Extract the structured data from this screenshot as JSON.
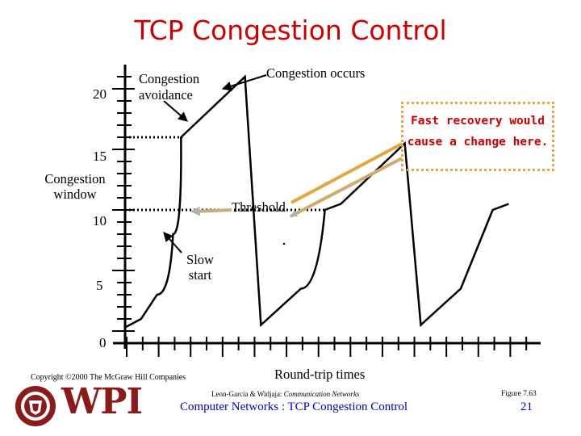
{
  "slide": {
    "title": "TCP Congestion Control",
    "copyright": "Copyright ©2000 The McGraw Hill Companies",
    "citation": "Leon-Garcia & Widjaja:",
    "citation_book": "Communication Networks",
    "figure": "Figure 7.63",
    "footer_course": "Computer Networks : TCP Congestion Control",
    "page_number": "21",
    "logo_text": "WPI",
    "callout": "Fast recovery would cause a change here.",
    "colors": {
      "title": "#cc0000",
      "footer": "#0000cc",
      "callout_border": "#e2a83f",
      "callout_text": "#cc0000"
    }
  },
  "chart_data": {
    "type": "line",
    "title": "TCP Congestion Control",
    "ylabel": "Congestion window",
    "xlabel": "Round-trip times",
    "yticks": [
      0,
      5,
      10,
      15,
      20
    ],
    "ylim": [
      0,
      22
    ],
    "xlim": [
      0,
      26
    ],
    "series": [
      {
        "name": "Congestion window",
        "x": [
          0,
          1,
          2,
          3,
          3.5,
          7.5,
          8.5,
          11,
          12.5,
          13.5,
          17.5,
          18.5,
          21,
          23,
          24
        ],
        "y": [
          0.3,
          1,
          3,
          8,
          16,
          21,
          0.5,
          3.5,
          10,
          10.5,
          15.5,
          0.5,
          3.5,
          10,
          10.5
        ]
      }
    ],
    "reference_lines": [
      {
        "name": "Threshold",
        "y": 10
      },
      {
        "name": "Congestion avoidance level",
        "y": 16
      }
    ],
    "annotations": {
      "congestion_avoidance": "Congestion avoidance",
      "congestion_occurs": "Congestion occurs",
      "threshold": "Threshold",
      "slow_start": "Slow start"
    }
  }
}
